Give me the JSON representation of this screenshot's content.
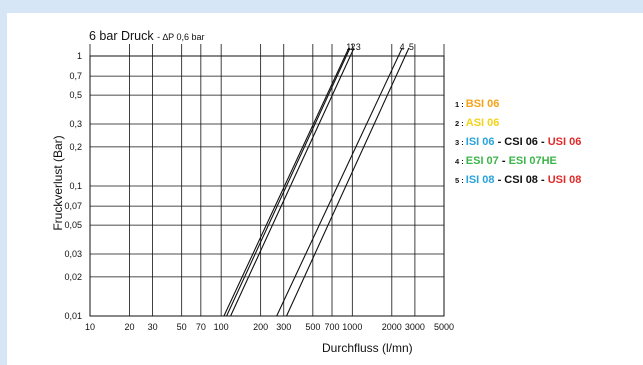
{
  "chart_data": {
    "type": "line",
    "title": "6 bar Druck",
    "subtitle": "- ∆P 0,6 bar",
    "xlabel": "Durchfluss (l/mn)",
    "ylabel": "Fruckverlust (Bar)",
    "xscale": "log",
    "yscale": "log",
    "xlim": [
      10,
      5000
    ],
    "ylim": [
      0.01,
      1
    ],
    "grid": true,
    "x_ticks": [
      "10",
      "20",
      "30",
      "50",
      "70",
      "100",
      "200",
      "300",
      "500",
      "700",
      "1000",
      "2000",
      "3000",
      "5000"
    ],
    "x_tick_values": [
      10,
      20,
      30,
      50,
      70,
      100,
      200,
      300,
      500,
      700,
      1000,
      2000,
      3000,
      5000
    ],
    "y_ticks": [
      "1",
      "0,7",
      "0,5",
      "0,3",
      "0,2",
      "0,1",
      "0,07",
      "0,05",
      "0,03",
      "0,02",
      "0,01"
    ],
    "y_tick_values": [
      1,
      0.7,
      0.5,
      0.3,
      0.2,
      0.1,
      0.07,
      0.05,
      0.03,
      0.02,
      0.01
    ],
    "series": [
      {
        "name": "1",
        "x": [
          105,
          940
        ],
        "y": [
          0.01,
          1
        ]
      },
      {
        "name": "2",
        "x": [
          110,
          960
        ],
        "y": [
          0.01,
          1
        ]
      },
      {
        "name": "3",
        "x": [
          118,
          1030
        ],
        "y": [
          0.01,
          1
        ]
      },
      {
        "name": "4",
        "x": [
          265,
          2400
        ],
        "y": [
          0.01,
          1
        ]
      },
      {
        "name": "5",
        "x": [
          315,
          2700
        ],
        "y": [
          0.01,
          1
        ]
      }
    ],
    "line_labels": [
      {
        "text": "1",
        "x": 940
      },
      {
        "text": "2",
        "x": 1010
      },
      {
        "text": "3",
        "x": 1110
      },
      {
        "text": "4",
        "x": 2400
      },
      {
        "text": "5",
        "x": 2820
      }
    ],
    "legend_position": "right",
    "legend": [
      {
        "num": "1 :",
        "tokens": [
          {
            "text": "BSI 06",
            "color": "#f5a31a"
          }
        ]
      },
      {
        "num": "2 :",
        "tokens": [
          {
            "text": "ASI 06",
            "color": "#f3d21c"
          }
        ]
      },
      {
        "num": "3 :",
        "tokens": [
          {
            "text": "ISI 06",
            "color": "#2aa3dc"
          },
          {
            "text": " - ",
            "color": "#111111"
          },
          {
            "text": "CSI 06",
            "color": "#111111"
          },
          {
            "text": " - ",
            "color": "#111111"
          },
          {
            "text": "USI 06",
            "color": "#e02b2b"
          }
        ]
      },
      {
        "num": "4 :",
        "tokens": [
          {
            "text": "ESI 07",
            "color": "#3db54a"
          },
          {
            "text": " - ",
            "color": "#111111"
          },
          {
            "text": "ESI 07HE",
            "color": "#3db54a"
          }
        ]
      },
      {
        "num": "5 :",
        "tokens": [
          {
            "text": "ISI 08",
            "color": "#2aa3dc"
          },
          {
            "text": " - ",
            "color": "#111111"
          },
          {
            "text": "CSI 08",
            "color": "#111111"
          },
          {
            "text": " - ",
            "color": "#111111"
          },
          {
            "text": "USI 08",
            "color": "#e02b2b"
          }
        ]
      }
    ],
    "colors": {
      "frame": "#d7e6f6",
      "line": "#111111",
      "grid": "#111111"
    }
  }
}
